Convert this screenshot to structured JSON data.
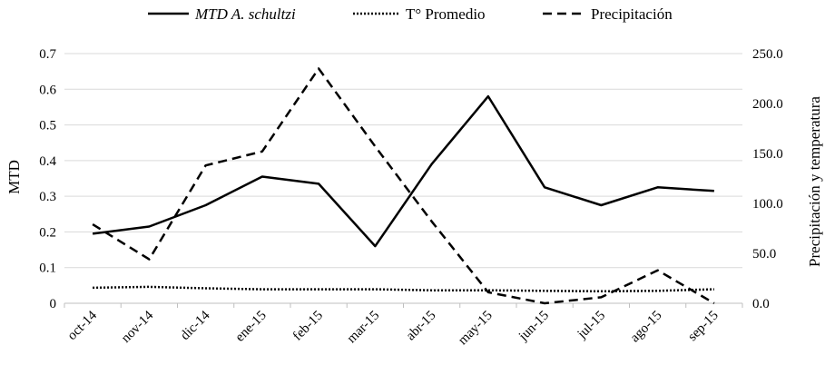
{
  "chart_data": {
    "type": "line",
    "categories": [
      "oct-14",
      "nov-14",
      "dic-14",
      "ene-15",
      "feb-15",
      "mar-15",
      "abr-15",
      "may-15",
      "jun-15",
      "jul-15",
      "ago-15",
      "sep-15"
    ],
    "series": [
      {
        "name": "MTD A. schultzi",
        "axis": "left",
        "style": "solid",
        "color": "#000000",
        "values": [
          0.195,
          0.215,
          0.275,
          0.355,
          0.335,
          0.16,
          0.39,
          0.58,
          0.325,
          0.275,
          0.325,
          0.315
        ]
      },
      {
        "name": "T° Promedio",
        "axis": "right",
        "style": "dotted",
        "color": "#000000",
        "values": [
          15.5,
          16.5,
          15.0,
          14.0,
          14.0,
          14.0,
          13.0,
          13.0,
          12.5,
          12.0,
          12.5,
          14.0
        ]
      },
      {
        "name": "Precipitación",
        "axis": "right",
        "style": "dashed",
        "color": "#000000",
        "values": [
          79,
          44,
          138,
          152,
          235,
          157,
          82,
          11,
          0,
          6,
          33,
          0
        ]
      }
    ],
    "ylabel": "MTD",
    "y2label": "Precipitación y temperatura",
    "ylim": [
      0,
      0.7
    ],
    "y2lim": [
      0,
      250
    ],
    "yticks": [
      "0",
      "0.1",
      "0.2",
      "0.3",
      "0.4",
      "0.5",
      "0.6",
      "0.7"
    ],
    "y2ticks": [
      "0.0",
      "50.0",
      "100.0",
      "150.0",
      "200.0",
      "250.0"
    ],
    "grid": true,
    "legend_position": "top"
  }
}
